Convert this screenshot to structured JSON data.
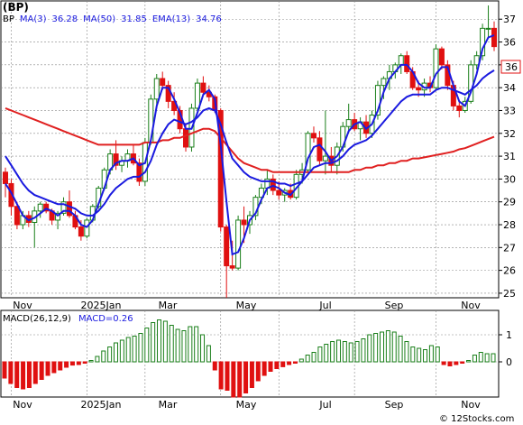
{
  "symbol_label": "(BP)",
  "legend": [
    {
      "label": "BP",
      "color": "#000000"
    },
    {
      "label": "MA(3)",
      "color": "#1a1adf"
    },
    {
      "label": "36.28",
      "color": "#1a1adf"
    },
    {
      "label": "MA(50)",
      "color": "#1a1adf"
    },
    {
      "label": "31.85",
      "color": "#1a1adf"
    },
    {
      "label": "EMA(13)",
      "color": "#1a1adf"
    },
    {
      "label": "34.76",
      "color": "#1a1adf"
    }
  ],
  "macd_legend": [
    {
      "label": "MACD(26,12,9)",
      "color": "#000000"
    },
    {
      "label": "MACD=0.26",
      "color": "#1a1adf"
    }
  ],
  "last_price_tag": "36",
  "watermark": "© 12Stocks.com",
  "colors": {
    "up": "#1a7f1a",
    "down": "#e01010",
    "ma": "#1a1adf",
    "ema": "#e02020",
    "tag": "#e01010"
  },
  "chart_data": [
    {
      "type": "candlestick",
      "title": "(BP)",
      "x_labels": [
        "Nov",
        "2025Jan",
        "Mar",
        "May",
        "Jul",
        "Sep",
        "Nov"
      ],
      "y_ticks": [
        25,
        26,
        27,
        28,
        29,
        30,
        31,
        32,
        33,
        34,
        35,
        36,
        37
      ],
      "ylim": [
        24.8,
        37.8
      ],
      "grid": true,
      "candles": [
        [
          30.3,
          30.5,
          29.2,
          29.8
        ],
        [
          29.8,
          30.0,
          28.4,
          28.8
        ],
        [
          28.8,
          29.0,
          27.8,
          28.0
        ],
        [
          28.0,
          28.6,
          27.8,
          28.4
        ],
        [
          28.4,
          28.6,
          27.9,
          28.1
        ],
        [
          28.1,
          28.8,
          27.0,
          28.6
        ],
        [
          28.6,
          29.0,
          28.3,
          28.9
        ],
        [
          28.9,
          29.0,
          28.5,
          28.6
        ],
        [
          28.6,
          28.7,
          28.0,
          28.2
        ],
        [
          28.2,
          28.6,
          27.8,
          28.5
        ],
        [
          28.5,
          29.2,
          28.4,
          29.0
        ],
        [
          29.0,
          29.5,
          28.3,
          28.4
        ],
        [
          28.4,
          28.6,
          27.8,
          27.9
        ],
        [
          27.9,
          28.2,
          27.3,
          27.5
        ],
        [
          27.5,
          28.3,
          27.4,
          28.2
        ],
        [
          28.2,
          28.9,
          28.1,
          28.8
        ],
        [
          28.8,
          29.7,
          28.7,
          29.6
        ],
        [
          29.6,
          30.5,
          29.5,
          30.4
        ],
        [
          30.4,
          31.3,
          30.2,
          31.1
        ],
        [
          31.1,
          31.7,
          30.4,
          30.6
        ],
        [
          30.6,
          31.0,
          30.3,
          30.8
        ],
        [
          30.8,
          31.3,
          30.5,
          31.1
        ],
        [
          31.1,
          31.5,
          30.6,
          30.7
        ],
        [
          30.7,
          30.9,
          29.7,
          29.9
        ],
        [
          29.9,
          31.8,
          29.7,
          31.6
        ],
        [
          31.6,
          33.7,
          31.5,
          33.5
        ],
        [
          33.5,
          34.6,
          33.2,
          34.4
        ],
        [
          34.4,
          34.7,
          33.9,
          34.1
        ],
        [
          34.1,
          34.3,
          33.1,
          33.4
        ],
        [
          33.4,
          33.8,
          32.8,
          33.0
        ],
        [
          33.0,
          33.2,
          32.0,
          32.2
        ],
        [
          32.2,
          32.4,
          31.2,
          31.4
        ],
        [
          31.4,
          33.3,
          31.2,
          33.1
        ],
        [
          33.1,
          34.4,
          32.9,
          34.2
        ],
        [
          34.2,
          34.5,
          33.7,
          33.8
        ],
        [
          33.8,
          34.1,
          33.4,
          33.6
        ],
        [
          33.6,
          33.7,
          32.9,
          33.0
        ],
        [
          33.0,
          33.1,
          27.7,
          27.9
        ],
        [
          27.9,
          28.0,
          24.8,
          26.2
        ],
        [
          26.2,
          27.3,
          26.0,
          26.1
        ],
        [
          26.1,
          28.4,
          26.0,
          28.2
        ],
        [
          28.2,
          28.8,
          27.2,
          28.0
        ],
        [
          28.0,
          28.6,
          27.6,
          28.4
        ],
        [
          28.4,
          29.3,
          28.2,
          29.2
        ],
        [
          29.2,
          29.8,
          28.9,
          29.6
        ],
        [
          29.6,
          30.4,
          29.3,
          30.0
        ],
        [
          30.0,
          30.2,
          29.3,
          29.5
        ],
        [
          29.5,
          29.9,
          29.1,
          29.3
        ],
        [
          29.3,
          29.6,
          29.0,
          29.5
        ],
        [
          29.5,
          29.8,
          29.1,
          29.2
        ],
        [
          29.2,
          30.4,
          29.1,
          30.2
        ],
        [
          30.2,
          30.7,
          29.8,
          30.4
        ],
        [
          30.4,
          32.1,
          30.3,
          32.0
        ],
        [
          32.0,
          32.3,
          31.6,
          31.8
        ],
        [
          31.8,
          32.1,
          30.6,
          30.8
        ],
        [
          30.8,
          33.0,
          30.2,
          31.0
        ],
        [
          31.0,
          31.4,
          30.3,
          30.6
        ],
        [
          30.6,
          31.6,
          30.2,
          31.4
        ],
        [
          31.4,
          32.5,
          31.2,
          32.3
        ],
        [
          32.3,
          33.3,
          32.0,
          32.6
        ],
        [
          32.6,
          32.9,
          32.1,
          32.2
        ],
        [
          32.2,
          32.7,
          31.7,
          32.5
        ],
        [
          32.5,
          32.8,
          31.8,
          32.0
        ],
        [
          32.0,
          33.0,
          31.8,
          32.8
        ],
        [
          32.8,
          34.3,
          32.6,
          34.1
        ],
        [
          34.1,
          34.5,
          33.5,
          34.4
        ],
        [
          34.4,
          35.0,
          33.9,
          34.7
        ],
        [
          34.7,
          35.1,
          34.4,
          35.0
        ],
        [
          35.0,
          35.5,
          34.6,
          35.4
        ],
        [
          35.4,
          35.6,
          34.6,
          34.7
        ],
        [
          34.7,
          34.9,
          33.9,
          34.0
        ],
        [
          34.0,
          34.3,
          33.6,
          33.9
        ],
        [
          33.9,
          34.4,
          33.6,
          34.2
        ],
        [
          34.2,
          34.5,
          33.8,
          34.0
        ],
        [
          34.0,
          35.9,
          33.9,
          35.7
        ],
        [
          35.7,
          35.8,
          34.8,
          35.0
        ],
        [
          35.0,
          35.2,
          33.9,
          34.1
        ],
        [
          34.1,
          34.3,
          33.0,
          33.2
        ],
        [
          33.2,
          33.4,
          32.7,
          33.0
        ],
        [
          33.0,
          33.6,
          32.9,
          33.4
        ],
        [
          33.4,
          35.2,
          33.3,
          35.0
        ],
        [
          35.0,
          35.6,
          34.8,
          35.4
        ],
        [
          35.4,
          36.8,
          35.2,
          36.6
        ],
        [
          36.6,
          37.6,
          36.2,
          36.6
        ],
        [
          36.6,
          36.9,
          35.6,
          35.8
        ]
      ],
      "ma3": [
        29.8,
        29.4,
        28.9,
        28.4,
        28.2,
        28.3,
        28.5,
        28.7,
        28.6,
        28.4,
        28.6,
        28.6,
        28.4,
        28.0,
        27.9,
        28.2,
        28.9,
        29.6,
        30.4,
        30.7,
        30.8,
        30.8,
        30.9,
        30.6,
        30.7,
        31.7,
        33.2,
        34.0,
        34.0,
        33.5,
        32.9,
        32.2,
        32.2,
        32.9,
        33.7,
        33.9,
        33.5,
        31.5,
        29.0,
        26.7,
        26.8,
        27.4,
        28.2,
        28.5,
        29.1,
        29.6,
        29.7,
        29.6,
        29.4,
        29.3,
        29.6,
        29.9,
        30.9,
        31.4,
        31.5,
        31.2,
        30.8,
        31.0,
        31.4,
        32.1,
        32.4,
        32.5,
        32.2,
        32.4,
        33.0,
        33.8,
        34.4,
        34.7,
        35.0,
        35.0,
        34.7,
        34.2,
        34.0,
        34.0,
        34.6,
        34.9,
        34.9,
        34.1,
        33.4,
        33.2,
        33.8,
        34.6,
        35.7,
        36.2,
        36.3
      ],
      "ma50": [
        33.1,
        33.0,
        32.9,
        32.8,
        32.7,
        32.6,
        32.5,
        32.4,
        32.3,
        32.2,
        32.1,
        32.0,
        31.9,
        31.8,
        31.7,
        31.6,
        31.5,
        31.5,
        31.5,
        31.5,
        31.5,
        31.5,
        31.5,
        31.5,
        31.6,
        31.6,
        31.6,
        31.7,
        31.7,
        31.8,
        31.8,
        31.9,
        32.0,
        32.1,
        32.2,
        32.2,
        32.1,
        31.8,
        31.5,
        31.2,
        30.9,
        30.7,
        30.6,
        30.5,
        30.4,
        30.4,
        30.3,
        30.3,
        30.3,
        30.3,
        30.3,
        30.3,
        30.3,
        30.3,
        30.3,
        30.3,
        30.3,
        30.3,
        30.3,
        30.3,
        30.4,
        30.4,
        30.5,
        30.5,
        30.6,
        30.6,
        30.7,
        30.7,
        30.8,
        30.8,
        30.9,
        30.9,
        30.95,
        31.0,
        31.05,
        31.1,
        31.15,
        31.2,
        31.3,
        31.35,
        31.45,
        31.55,
        31.65,
        31.75,
        31.85
      ],
      "ema13": [
        31.0,
        30.6,
        30.2,
        29.8,
        29.5,
        29.3,
        29.2,
        29.1,
        29.0,
        28.9,
        28.9,
        28.8,
        28.7,
        28.5,
        28.4,
        28.4,
        28.6,
        28.9,
        29.3,
        29.6,
        29.8,
        30.0,
        30.1,
        30.1,
        30.3,
        30.8,
        31.5,
        32.0,
        32.4,
        32.6,
        32.5,
        32.4,
        32.5,
        32.7,
        33.0,
        33.1,
        33.0,
        32.4,
        31.6,
        30.9,
        30.6,
        30.3,
        30.1,
        30.0,
        29.9,
        29.9,
        29.9,
        29.8,
        29.8,
        29.7,
        29.8,
        29.9,
        30.2,
        30.5,
        30.6,
        30.7,
        30.7,
        30.8,
        31.0,
        31.3,
        31.5,
        31.6,
        31.7,
        31.9,
        32.2,
        32.5,
        32.8,
        33.1,
        33.4,
        33.6,
        33.7,
        33.7,
        33.7,
        33.7,
        33.9,
        34.0,
        34.0,
        33.9,
        33.8,
        33.7,
        33.9,
        34.1,
        34.4,
        34.6,
        34.76
      ]
    },
    {
      "type": "bar",
      "title": "MACD(26,12,9)",
      "y_ticks": [
        0,
        1
      ],
      "ylim": [
        -1.3,
        1.9
      ],
      "values": [
        -0.6,
        -0.8,
        -0.95,
        -1.0,
        -0.95,
        -0.8,
        -0.65,
        -0.5,
        -0.4,
        -0.3,
        -0.2,
        -0.12,
        -0.1,
        -0.05,
        0.05,
        0.2,
        0.4,
        0.55,
        0.7,
        0.8,
        0.9,
        0.95,
        1.05,
        1.25,
        1.45,
        1.55,
        1.5,
        1.35,
        1.2,
        1.15,
        1.3,
        1.3,
        1.0,
        0.6,
        -0.3,
        -1.0,
        -1.05,
        -1.3,
        -1.3,
        -1.15,
        -0.95,
        -0.7,
        -0.5,
        -0.35,
        -0.25,
        -0.18,
        -0.1,
        -0.05,
        0.1,
        0.25,
        0.35,
        0.55,
        0.65,
        0.75,
        0.8,
        0.75,
        0.7,
        0.75,
        0.85,
        1.0,
        1.05,
        1.1,
        1.15,
        1.1,
        0.95,
        0.75,
        0.55,
        0.5,
        0.45,
        0.6,
        0.55,
        -0.1,
        -0.15,
        -0.1,
        -0.05,
        0.05,
        0.25,
        0.35,
        0.3,
        0.3
      ]
    }
  ]
}
